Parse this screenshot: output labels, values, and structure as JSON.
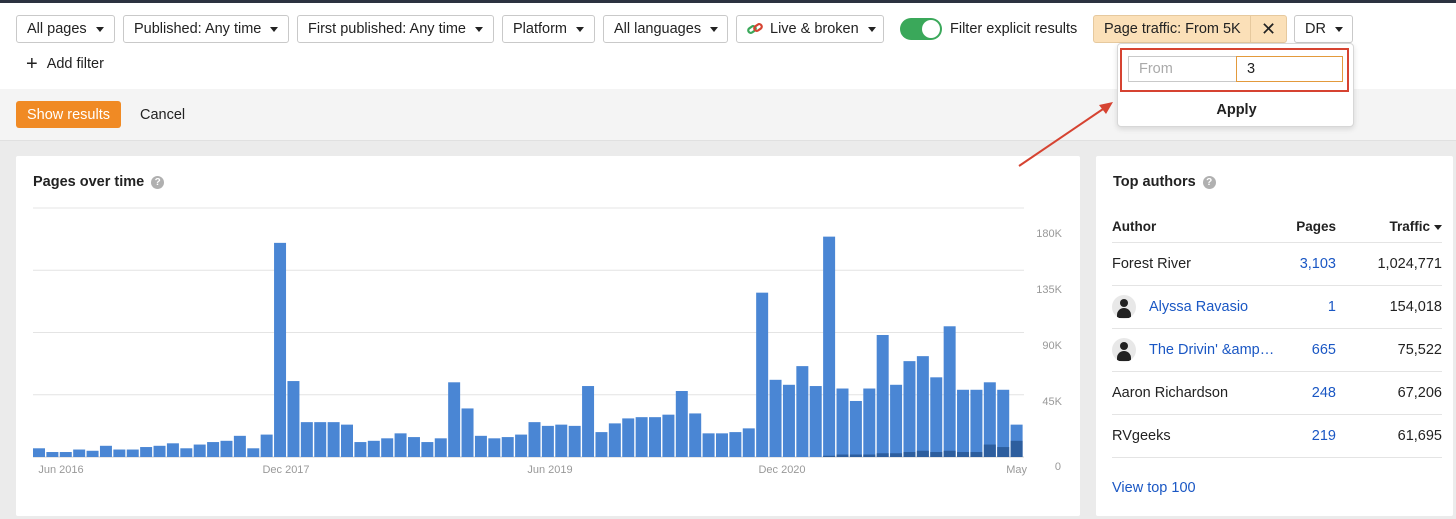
{
  "filters": {
    "all_pages": "All pages",
    "published": "Published: Any time",
    "first_published": "First published: Any time",
    "platform": "Platform",
    "languages": "All languages",
    "live_broken": "Live & broken",
    "explicit_label": "Filter explicit results",
    "explicit_on": true,
    "page_traffic": "Page traffic: From 5K",
    "dr": "DR",
    "add_filter": "Add filter"
  },
  "actions": {
    "show_results": "Show results",
    "cancel": "Cancel"
  },
  "popover": {
    "from_placeholder": "From",
    "to_value": "3",
    "apply": "Apply"
  },
  "colors": {
    "accent": "#f08a24",
    "bar": "#4a86d4",
    "bar_dark": "#2d5e9e",
    "toggle": "#3aa85a",
    "chip": "#fbe0b8",
    "annotation": "#d64331"
  },
  "pages_over_time": {
    "title": "Pages over time",
    "help_icon": "question-circle-icon"
  },
  "chart_data": {
    "type": "bar",
    "x_tick_labels": [
      "Jun 2016",
      "Dec 2017",
      "Jun 2019",
      "Dec 2020",
      "May"
    ],
    "y_tick_labels": [
      "0",
      "45K",
      "90K",
      "135K",
      "180K"
    ],
    "ylim": [
      0,
      180000
    ],
    "grid": true,
    "series": [
      {
        "values": [
          7000,
          4000,
          4000,
          6000,
          5000,
          9000,
          6000,
          6000,
          8000,
          9000,
          11000,
          7000,
          10000,
          12000,
          13000,
          17000,
          7000,
          18000,
          172000,
          61000,
          28000,
          28000,
          28000,
          26000,
          12000,
          13000,
          15000,
          19000,
          16000,
          12000,
          15000,
          60000,
          39000,
          17000,
          15000,
          16000,
          18000,
          28000,
          25000,
          26000,
          25000,
          57000,
          20000,
          27000,
          31000,
          32000,
          32000,
          34000,
          53000,
          35000,
          19000,
          19000,
          20000,
          23000,
          132000,
          62000,
          58000,
          73000,
          57000,
          177000,
          55000,
          45000,
          55000,
          98000,
          58000,
          77000,
          81000,
          64000,
          105000,
          54000,
          54000,
          60000,
          54000,
          26000
        ]
      },
      {
        "values": [
          0,
          0,
          0,
          0,
          0,
          0,
          0,
          0,
          0,
          0,
          0,
          0,
          0,
          0,
          0,
          0,
          0,
          0,
          0,
          0,
          0,
          0,
          0,
          0,
          0,
          0,
          0,
          0,
          0,
          0,
          0,
          0,
          0,
          0,
          0,
          0,
          0,
          0,
          0,
          0,
          0,
          0,
          0,
          0,
          0,
          0,
          0,
          0,
          0,
          0,
          0,
          0,
          0,
          0,
          0,
          0,
          0,
          0,
          0,
          1000,
          2000,
          2000,
          2000,
          3000,
          3000,
          4000,
          5000,
          4000,
          5000,
          4000,
          4000,
          10000,
          8000,
          13000
        ]
      }
    ]
  },
  "top_authors": {
    "title": "Top authors",
    "help_icon": "question-circle-icon",
    "headers": {
      "author": "Author",
      "pages": "Pages",
      "traffic": "Traffic"
    },
    "rows": [
      {
        "author": "Forest River",
        "pages": "3,103",
        "traffic": "1,024,771",
        "avatar": false,
        "link": false
      },
      {
        "author": "Alyssa Ravasio",
        "pages": "1",
        "traffic": "154,018",
        "avatar": true,
        "link": true
      },
      {
        "author": "The Drivin' &amp…",
        "pages": "665",
        "traffic": "75,522",
        "avatar": true,
        "link": true
      },
      {
        "author": "Aaron Richardson",
        "pages": "248",
        "traffic": "67,206",
        "avatar": false,
        "link": false
      },
      {
        "author": "RVgeeks",
        "pages": "219",
        "traffic": "61,695",
        "avatar": false,
        "link": false
      }
    ],
    "view_top": "View top 100"
  }
}
